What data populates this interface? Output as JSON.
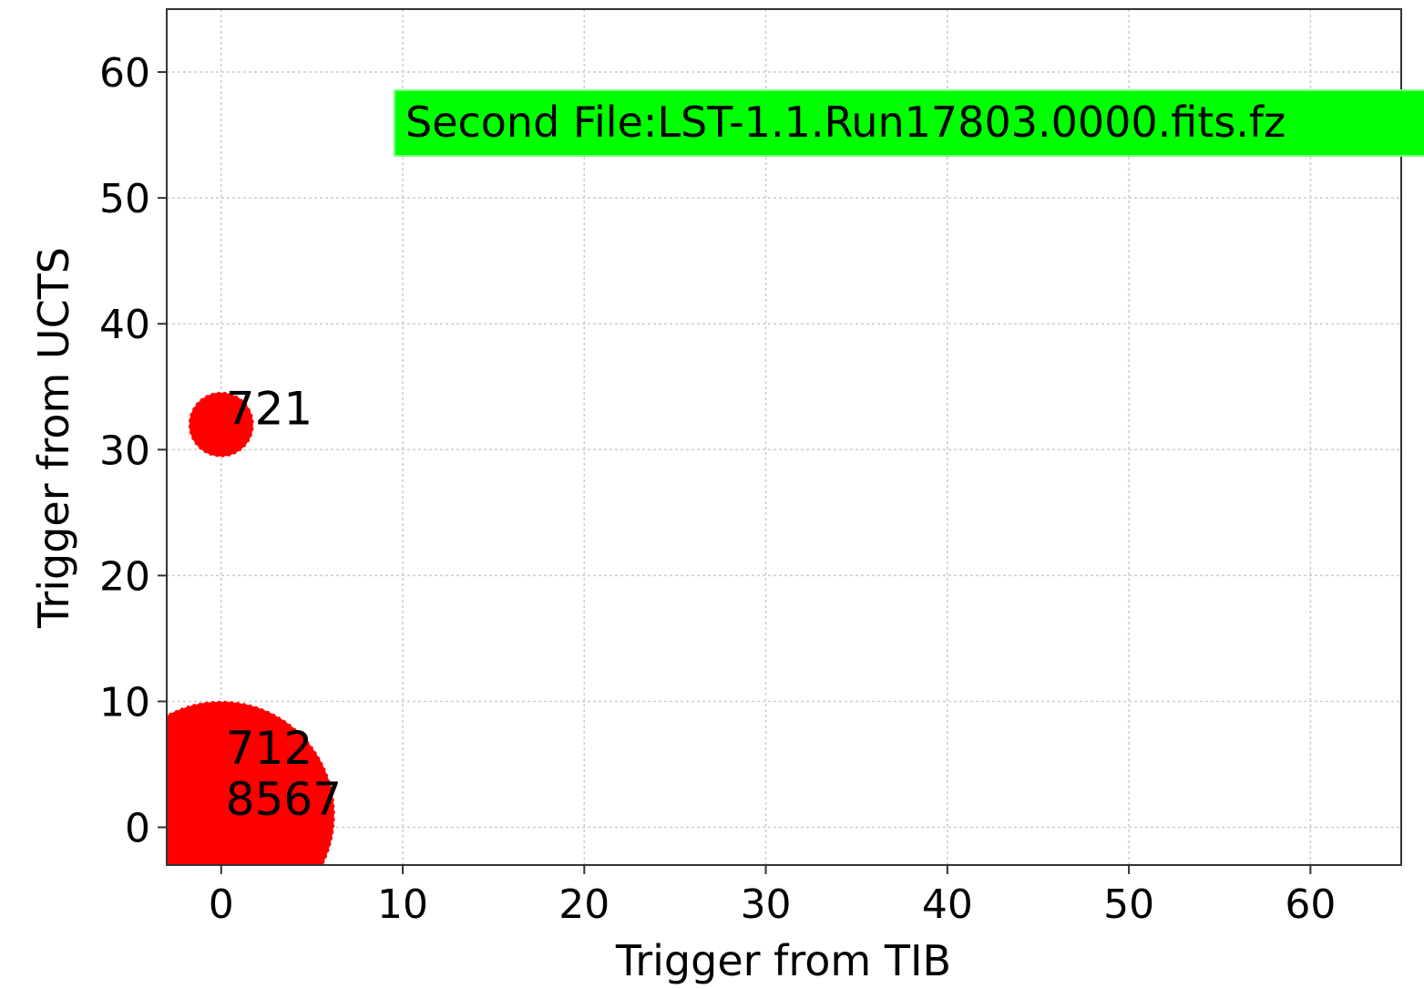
{
  "chart_data": {
    "type": "scatter",
    "title": "",
    "xlabel": "Trigger from TIB",
    "ylabel": "Trigger from UCTS",
    "xlim": [
      -3,
      65
    ],
    "ylim": [
      -3,
      65
    ],
    "xticks": [
      0,
      10,
      20,
      30,
      40,
      50,
      60
    ],
    "yticks": [
      0,
      10,
      20,
      30,
      40,
      50,
      60
    ],
    "grid": true,
    "marker_color": "#ff0000",
    "points": [
      {
        "x": 0,
        "y": 32,
        "label": "721",
        "size": "small"
      },
      {
        "x": 0,
        "y": 1,
        "label": "712",
        "size": "large"
      },
      {
        "x": 0,
        "y": 1,
        "label": "8567",
        "size": "large"
      }
    ],
    "annotation": {
      "text": "Second File:LST-1.1.Run17803.0000.fits.fz",
      "background": "#00ff00"
    }
  }
}
